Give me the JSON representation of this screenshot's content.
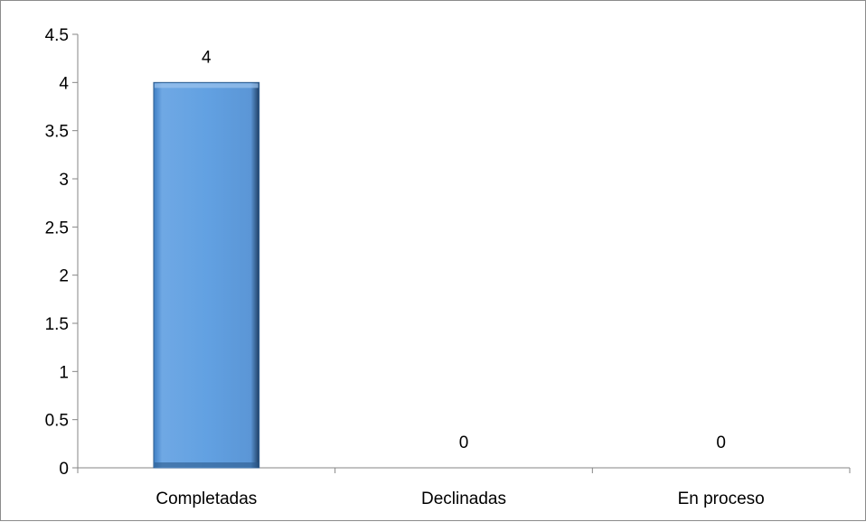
{
  "chart_data": {
    "type": "bar",
    "title": "",
    "xlabel": "",
    "ylabel": "",
    "categories": [
      "Completadas",
      "Declinadas",
      "En proceso"
    ],
    "values": [
      4,
      0,
      0
    ],
    "data_labels": [
      "4",
      "0",
      "0"
    ],
    "ylim": [
      0,
      4.5
    ],
    "y_ticks": [
      "0",
      "0.5",
      "1",
      "1.5",
      "2",
      "2.5",
      "3",
      "3.5",
      "4",
      "4.5"
    ],
    "grid": false,
    "legend": "none",
    "bar_color": "#5b9bd5"
  }
}
